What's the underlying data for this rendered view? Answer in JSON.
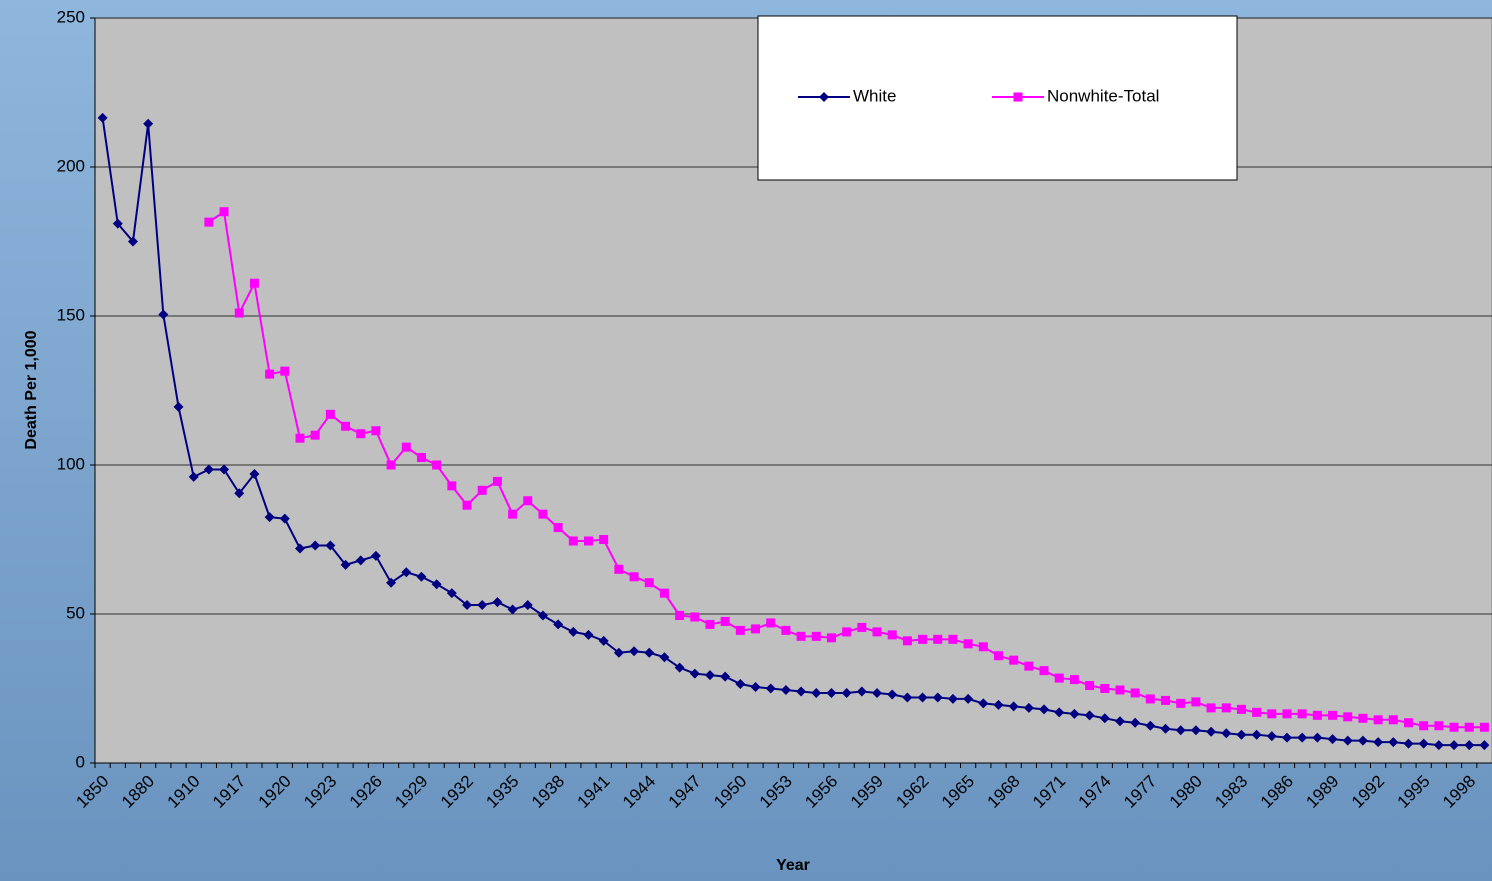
{
  "chart_data": {
    "type": "line",
    "xlabel": "Year",
    "ylabel": "Death Per 1,000",
    "categories": [
      "1850",
      null,
      null,
      "1880",
      null,
      null,
      "1910",
      null,
      null,
      "1917",
      null,
      null,
      "1920",
      null,
      null,
      "1923",
      null,
      null,
      "1926",
      null,
      null,
      "1929",
      null,
      null,
      "1932",
      null,
      null,
      "1935",
      null,
      null,
      "1938",
      null,
      null,
      "1941",
      null,
      null,
      "1944",
      null,
      null,
      "1947",
      null,
      null,
      "1950",
      null,
      null,
      "1953",
      null,
      null,
      "1956",
      null,
      null,
      "1959",
      null,
      null,
      "1962",
      null,
      null,
      "1965",
      null,
      null,
      "1968",
      null,
      null,
      "1971",
      null,
      null,
      "1974",
      null,
      null,
      "1977",
      null,
      null,
      "1980",
      null,
      null,
      "1983",
      null,
      null,
      "1986",
      null,
      null,
      "1989",
      null,
      null,
      "1992",
      null,
      null,
      "1995",
      null,
      null,
      "1998",
      null
    ],
    "series": [
      {
        "name": "White",
        "color": "#000080",
        "marker": "diamond",
        "values": [
          216.5,
          181,
          175,
          214.5,
          150.5,
          119.5,
          96,
          98.5,
          98.5,
          90.5,
          97,
          82.5,
          82,
          72,
          73,
          73,
          66.5,
          68,
          69.5,
          60.5,
          64,
          62.5,
          60,
          57,
          53,
          53,
          54,
          51.5,
          53,
          49.5,
          46.5,
          44,
          43,
          41,
          37,
          37.5,
          37,
          35.5,
          32,
          30,
          29.5,
          29,
          26.5,
          25.5,
          25,
          24.5,
          24,
          23.5,
          23.5,
          23.5,
          24,
          23.5,
          23,
          22,
          22,
          22,
          21.5,
          21.5,
          20,
          19.5,
          19,
          18.5,
          18,
          17,
          16.5,
          16,
          15,
          14,
          13.5,
          12.5,
          11.5,
          11,
          11,
          10.5,
          10,
          9.5,
          9.5,
          9,
          8.5,
          8.5,
          8.5,
          8,
          7.5,
          7.5,
          7,
          7,
          6.5,
          6.5,
          6,
          6,
          6,
          6
        ]
      },
      {
        "name": "Nonwhite-Total",
        "color": "#ff00ff",
        "marker": "square",
        "values": [
          null,
          null,
          null,
          null,
          null,
          null,
          null,
          181.5,
          185,
          151,
          161,
          130.5,
          131.5,
          109,
          110,
          117,
          113,
          110.5,
          111.5,
          100,
          106,
          102.5,
          100,
          93,
          86.5,
          91.5,
          94.5,
          83.5,
          88,
          83.5,
          79,
          74.5,
          74.5,
          75,
          65,
          62.5,
          60.5,
          57,
          49.5,
          49,
          46.5,
          47.5,
          44.5,
          45,
          47,
          44.5,
          42.5,
          42.5,
          42,
          44,
          45.5,
          44,
          43,
          41,
          41.5,
          41.5,
          41.5,
          40,
          39,
          36,
          34.5,
          32.5,
          31,
          28.5,
          28,
          26,
          25,
          24.5,
          23.5,
          21.5,
          21,
          20,
          20.5,
          18.5,
          18.5,
          18,
          17,
          16.5,
          16.5,
          16.5,
          16,
          16,
          15.5,
          15,
          14.5,
          14.5,
          13.5,
          12.5,
          12.5,
          12,
          12,
          12
        ]
      }
    ],
    "ylim": [
      0,
      250
    ],
    "yticks": [
      0,
      50,
      100,
      150,
      200,
      250
    ],
    "grid": true,
    "legend": "top-right"
  }
}
